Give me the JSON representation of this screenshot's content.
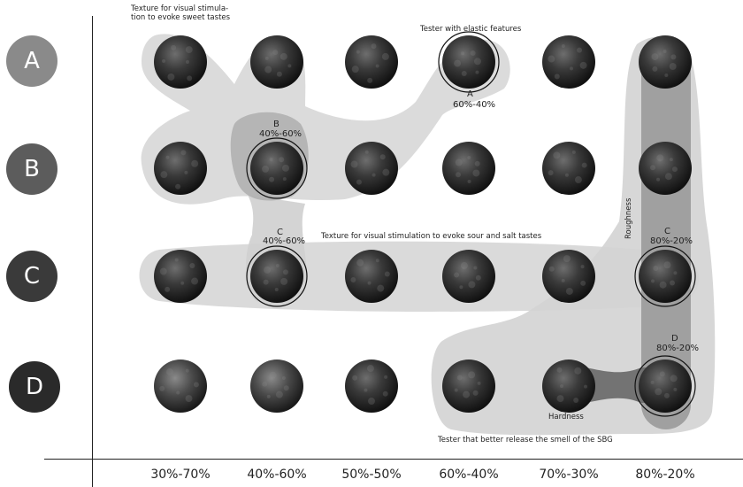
{
  "rows": [
    {
      "label": "A",
      "color": "#8a8a8a"
    },
    {
      "label": "B",
      "color": "#5c5c5c"
    },
    {
      "label": "C",
      "color": "#3a3a3a"
    },
    {
      "label": "D",
      "color": "#2a2a2a"
    }
  ],
  "columns": [
    "30%-70%",
    "40%-60%",
    "50%-50%",
    "60%-40%",
    "70%-30%",
    "80%-20%"
  ],
  "annotations": {
    "sweet": "Texture for visual stimula-\ntion to evoke sweet tastes",
    "elastic": "Tester with elastic features",
    "sour_salt": "Texture for visual stimulation to evoke sour and salt tastes",
    "smell": "Tester that better release the smell of the SBG",
    "roughness": "Roughness",
    "hardness": "Hardness"
  },
  "highlights": [
    {
      "letter": "A",
      "ratio": "60%-40%"
    },
    {
      "letter": "B",
      "ratio": "40%-60%"
    },
    {
      "letter": "C",
      "ratio": "40%-60%"
    },
    {
      "letter": "C",
      "ratio": "80%-20%"
    },
    {
      "letter": "D",
      "ratio": "80%-20%"
    }
  ],
  "colors": {
    "region_light": "#d9d9d9",
    "region_mid": "#b4b4b4",
    "region_dark": "#8a8a8a",
    "hardness_bar": "#6e6e6e",
    "sphere_dark": "#1e1e1e",
    "sphere_light": "#6a6a6a"
  }
}
